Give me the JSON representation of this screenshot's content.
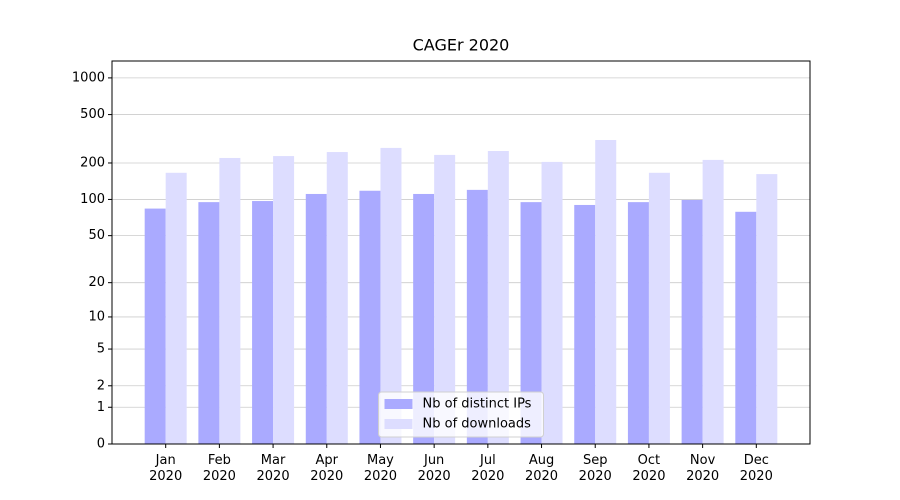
{
  "chart_data": {
    "type": "bar",
    "title": "CAGEr 2020",
    "scale": "log1p",
    "categories": [
      "Jan\n2020",
      "Feb\n2020",
      "Mar\n2020",
      "Apr\n2020",
      "May\n2020",
      "Jun\n2020",
      "Jul\n2020",
      "Aug\n2020",
      "Sep\n2020",
      "Oct\n2020",
      "Nov\n2020",
      "Dec\n2020"
    ],
    "series": [
      {
        "name": "Nb of distinct IPs",
        "color": "#aaaaff",
        "values": [
          84,
          95,
          97,
          111,
          118,
          111,
          120,
          95,
          90,
          95,
          99,
          79
        ]
      },
      {
        "name": "Nb of downloads",
        "color": "#ddddff",
        "values": [
          166,
          220,
          228,
          246,
          266,
          233,
          251,
          204,
          309,
          166,
          212,
          162
        ]
      }
    ],
    "ylim": [
      0,
      1376
    ],
    "yticks": [
      0,
      1,
      2,
      5,
      10,
      20,
      50,
      100,
      200,
      500,
      1000
    ],
    "grid": true,
    "legend": "lower center"
  }
}
